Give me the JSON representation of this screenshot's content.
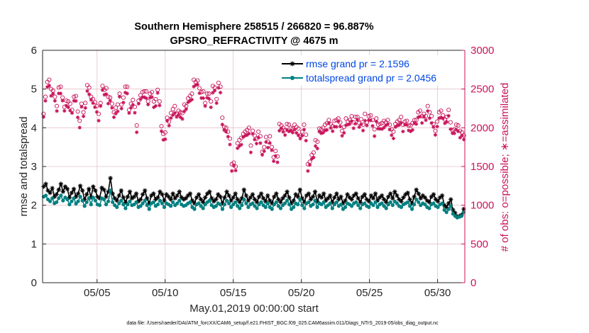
{
  "chart_data": {
    "type": "line",
    "title": "Southern Hemisphere 258515 / 266820 = 96.887%",
    "subtitle": "GPSRO_REFRACTIVITY @ 4675 m",
    "xlabel": "May.01,2019 00:00:00 start",
    "ylabel": "rmse and totalspread",
    "ylabel_right": "# of obs: o=possible; ∗=assimilated",
    "footer": "data file: /Users/raeder/DAI/ATM_forcXX/CAM6_setup/f.e21.FHIST_BGC.f09_025.CAM6assim.011/Diags_NTrS_2019-05/obs_diag_output.nc",
    "xlim": [
      1,
      32
    ],
    "ylim": [
      0,
      6
    ],
    "ylim_right": [
      0,
      3000
    ],
    "xticks": [
      5,
      10,
      15,
      20,
      25,
      30
    ],
    "xtick_labels": [
      "05/05",
      "05/10",
      "05/15",
      "05/20",
      "05/25",
      "05/30"
    ],
    "yticks": [
      0,
      1,
      2,
      3,
      4,
      5,
      6
    ],
    "yticks_right": [
      0,
      500,
      1000,
      1500,
      2000,
      2500,
      3000
    ],
    "grid": true,
    "legend_position": "top-right",
    "colors": {
      "rmse": "#000000",
      "spread": "#008080",
      "obs": "#c8145a",
      "legend_text": "#0046e6"
    },
    "series": [
      {
        "name": "rmse grand pr = 2.1596",
        "color": "#000000",
        "marker": "asterisk",
        "values": [
          2.48,
          2.55,
          2.38,
          2.32,
          2.44,
          2.22,
          2.28,
          2.4,
          2.55,
          2.35,
          2.48,
          2.42,
          2.2,
          2.32,
          2.42,
          2.22,
          2.3,
          2.5,
          2.38,
          2.15,
          2.28,
          2.42,
          2.2,
          2.48,
          2.38,
          2.22,
          2.18,
          2.45,
          2.4,
          2.22,
          2.35,
          2.7,
          2.3,
          2.18,
          2.12,
          2.25,
          2.38,
          2.2,
          2.08,
          2.22,
          2.35,
          2.18,
          2.22,
          2.3,
          2.1,
          2.15,
          2.28,
          2.38,
          2.18,
          2.05,
          2.25,
          2.3,
          2.15,
          2.2,
          2.35,
          2.28,
          2.12,
          2.28,
          2.22,
          2.15,
          2.3,
          2.18,
          2.25,
          2.35,
          2.2,
          2.15,
          2.18,
          2.25,
          2.3,
          2.12,
          2.05,
          2.2,
          2.28,
          2.15,
          2.08,
          2.2,
          2.3,
          2.35,
          2.18,
          2.1,
          2.15,
          2.28,
          2.22,
          2.05,
          2.2,
          2.35,
          2.25,
          2.12,
          2.2,
          2.3,
          2.15,
          2.08,
          2.18,
          2.4,
          2.25,
          2.12,
          2.2,
          2.28,
          2.15,
          2.08,
          2.22,
          2.3,
          2.18,
          2.1,
          2.25,
          2.12,
          2.05,
          2.22,
          2.3,
          2.15,
          2.08,
          2.18,
          2.25,
          2.35,
          2.2,
          2.05,
          2.12,
          2.28,
          2.22,
          2.4,
          2.18,
          2.08,
          2.25,
          2.3,
          2.15,
          2.22,
          2.35,
          2.1,
          2.25,
          2.2,
          2.3,
          2.12,
          2.18,
          2.25,
          2.08,
          2.2,
          2.3,
          2.15,
          2.22,
          2.05,
          2.12,
          2.28,
          2.2,
          2.15,
          2.25,
          2.3,
          2.18,
          2.08,
          2.22,
          2.28,
          2.15,
          2.1,
          2.25,
          2.18,
          2.3,
          2.12,
          2.2,
          2.25,
          2.15,
          2.08,
          2.22,
          2.3,
          2.18,
          2.35,
          2.25,
          2.15,
          2.1,
          2.2,
          2.28,
          2.32,
          2.15,
          2.05,
          2.22,
          2.4,
          2.3,
          2.18,
          2.25,
          2.2,
          2.12,
          2.08,
          2.22,
          2.28,
          2.15,
          2.1,
          2.2,
          2.25,
          2.0,
          1.95,
          2.05,
          2.15,
          1.88,
          1.8,
          1.7,
          1.72,
          1.75,
          1.9
        ]
      },
      {
        "name": "totalspread grand pr = 2.0456",
        "color": "#008080",
        "marker": "dot",
        "values": [
          2.22,
          2.25,
          2.15,
          2.1,
          2.18,
          2.05,
          2.08,
          2.18,
          2.25,
          2.12,
          2.2,
          2.15,
          2.02,
          2.1,
          2.18,
          2.04,
          2.1,
          2.22,
          2.12,
          1.98,
          2.08,
          2.18,
          2.02,
          2.2,
          2.12,
          2.02,
          2.0,
          2.18,
          2.15,
          2.02,
          2.1,
          2.38,
          2.08,
          2.0,
          1.95,
          2.05,
          2.12,
          2.02,
          1.92,
          2.02,
          2.1,
          2.0,
          2.02,
          2.08,
          1.95,
          1.98,
          2.05,
          2.12,
          2.0,
          1.9,
          2.05,
          2.08,
          1.98,
          2.02,
          2.12,
          2.05,
          1.95,
          2.05,
          2.02,
          1.98,
          2.08,
          2.0,
          2.05,
          2.12,
          2.02,
          1.98,
          2.0,
          2.05,
          2.08,
          1.95,
          1.9,
          2.02,
          2.05,
          1.98,
          1.92,
          2.02,
          2.08,
          2.12,
          2.0,
          1.95,
          1.98,
          2.05,
          2.02,
          1.9,
          2.02,
          2.12,
          2.05,
          1.95,
          2.02,
          2.08,
          1.98,
          1.92,
          2.0,
          2.15,
          2.05,
          1.95,
          2.02,
          2.05,
          1.98,
          1.92,
          2.02,
          2.08,
          2.0,
          1.95,
          2.05,
          1.95,
          1.9,
          2.02,
          2.08,
          1.98,
          1.92,
          2.0,
          2.05,
          2.12,
          2.02,
          1.9,
          1.95,
          2.05,
          2.02,
          2.15,
          2.0,
          1.92,
          2.05,
          2.08,
          1.98,
          2.02,
          2.12,
          1.95,
          2.05,
          2.02,
          2.08,
          1.95,
          2.0,
          2.05,
          1.92,
          2.02,
          2.08,
          1.98,
          2.02,
          1.9,
          1.95,
          2.05,
          2.02,
          1.98,
          2.05,
          2.08,
          2.0,
          1.92,
          2.02,
          2.05,
          1.98,
          1.95,
          2.05,
          2.0,
          2.08,
          1.95,
          2.02,
          2.05,
          1.98,
          1.92,
          2.02,
          2.08,
          2.0,
          2.1,
          2.05,
          1.98,
          1.95,
          2.02,
          2.05,
          2.08,
          1.98,
          1.9,
          2.02,
          2.15,
          2.08,
          2.0,
          2.05,
          2.02,
          1.95,
          1.92,
          2.02,
          2.05,
          1.98,
          1.95,
          2.02,
          2.05,
          1.88,
          1.82,
          1.9,
          1.98,
          1.78,
          1.72,
          1.68,
          1.7,
          1.72,
          1.82
        ]
      }
    ],
    "obs_series": [
      {
        "name": "possible",
        "marker": "circle",
        "color": "#c8145a",
        "axis": "right",
        "values": [
          2180,
          2400,
          2590,
          2620,
          2500,
          2480,
          2400,
          2280,
          2520,
          2530,
          2390,
          2270,
          2350,
          2340,
          2310,
          2230,
          2400,
          2410,
          2210,
          2090,
          2310,
          2200,
          2320,
          2550,
          2520,
          2400,
          2370,
          2330,
          2280,
          2180,
          2320,
          2540,
          2490,
          2510,
          2400,
          2390,
          2310,
          2200,
          2260,
          2300,
          2440,
          2300,
          2390,
          2530,
          2530,
          2230,
          2310,
          2360,
          2270,
          2030,
          2350,
          2420,
          2460,
          2470,
          2470,
          2340,
          2440,
          2460,
          2340,
          2370,
          2490,
          2340,
          2020,
          1920,
          1940,
          2130,
          2080,
          2190,
          2240,
          2280,
          2180,
          2220,
          2200,
          2190,
          2300,
          2280,
          2380,
          2410,
          2440,
          2620,
          2590,
          2610,
          2510,
          2460,
          2470,
          2320,
          2440,
          2440,
          2340,
          2540,
          2520,
          2370,
          2580,
          2530,
          2130,
          2010,
          2000,
          1950,
          1860,
          1530,
          1550,
          1500,
          1800,
          1840,
          1870,
          1920,
          1950,
          1970,
          2000,
          1770,
          1960,
          1900,
          1860,
          1950,
          1890,
          1690,
          1750,
          1880,
          1820,
          1890,
          1750,
          1620,
          1700,
          1630,
          2050,
          2030,
          2000,
          1970,
          2050,
          2040,
          2000,
          1990,
          2040,
          2010,
          1990,
          1900,
          1950,
          2040,
          1910,
          1530,
          1560,
          1650,
          1680,
          1840,
          1820,
          1990,
          1980,
          2000,
          2040,
          2060,
          2100,
          2050,
          2020,
          2090,
          2100,
          2120,
          2070,
          1960,
          2010,
          2120,
          2080,
          2100,
          2150,
          2070,
          2140,
          2140,
          2060,
          2110,
          2040,
          2180,
          2070,
          2150,
          2160,
          2100,
          1980,
          2120,
          2040,
          2050,
          2060,
          2090,
          2070,
          2100,
          2040,
          1980,
          1950,
          2050,
          2080,
          2100,
          2140,
          2040,
          2080,
          2090,
          2030,
          2030,
          2060,
          2100,
          2100,
          2200,
          2220,
          2150,
          2180,
          2150,
          2280,
          2200,
          2150,
          2050,
          1960,
          2080,
          2200,
          2220,
          2160,
          2110,
          2140,
          2230,
          2070,
          1970,
          1980,
          2040,
          2030,
          1960,
          1940,
          1900
        ],
        "note_skip": true
      },
      {
        "name": "assimilated",
        "marker": "asterisk",
        "color": "#c8145a",
        "axis": "right"
      }
    ],
    "legend": [
      "rmse grand pr = 2.1596",
      "totalspread grand pr = 2.0456"
    ]
  }
}
